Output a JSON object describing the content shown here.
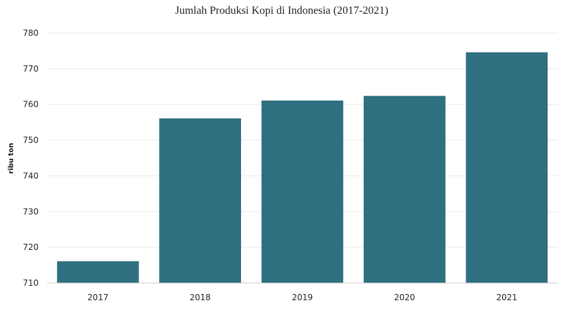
{
  "chart_data": {
    "type": "bar",
    "title": "Jumlah Produksi Kopi di Indonesia (2017-2021)",
    "xlabel": "",
    "ylabel": "ribu ton",
    "categories": [
      "2017",
      "2018",
      "2019",
      "2020",
      "2021"
    ],
    "values": [
      716.1,
      756.1,
      761.1,
      762.4,
      774.6
    ],
    "ylim": [
      710,
      780
    ],
    "yticks": [
      710,
      720,
      730,
      740,
      750,
      760,
      770,
      780
    ],
    "grid": true,
    "bar_color": "#2e6f80"
  }
}
